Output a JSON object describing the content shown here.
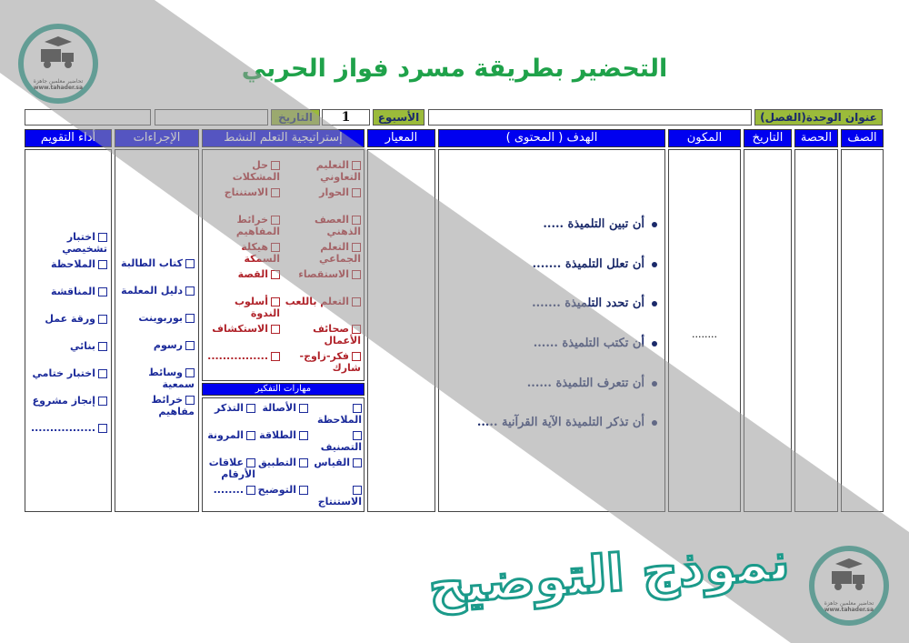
{
  "title": "التحضير بطريقة مسرد فواز الحربي",
  "logo": {
    "text_ar": "تحاضير معلمين جاهزة",
    "url_text": "www.tahader.sa"
  },
  "watermark": "نموذج التوضيح",
  "info_row": {
    "unit_label": "عنوان الوحدة(الفصل)",
    "unit_value": "",
    "week_label": "الأسبوع",
    "week_value": "1",
    "date_label": "التاريخ",
    "date_value": ""
  },
  "headers": {
    "grade": "الصف",
    "period": "الحصة",
    "date": "التاريخ",
    "component": "المكون",
    "objective": "الهدف ( المحتوى )",
    "standard": "المعيار",
    "strategy": "إستراتيجية التعلم النشط",
    "procedures": "الإجراءات",
    "assessment": "أداء التقويم",
    "thinking": "مهارات التفكير"
  },
  "component_value": "........",
  "objectives": [
    "أن تبين التلميذة .....",
    "أن تعلل التلميذة .......",
    "أن تحدد التلميذة .......",
    "أن تكتب التلميذة ......",
    "أن تتعرف التلميذة ......",
    "أن تذكر التلميذة الآية القرآنية ....."
  ],
  "strategies_right": [
    "التعليم التعاوني",
    "الحوار",
    "العصف الذهني",
    "التعلم الجماعي",
    "الاستقصاء",
    "التعلم باللعب",
    "صحائف الأعمال",
    "فكر-زاوج-شارك"
  ],
  "strategies_left": [
    "حل المشكلات",
    "الاستنتاج",
    "خرائط المفاهيم",
    "هيكلة السمكة",
    "القصة",
    "أسلوب الندوة",
    "الاستكشاف",
    "................"
  ],
  "thinking_skills": [
    [
      "الملاحظة",
      "الأصالة",
      "التذكر"
    ],
    [
      "التصنيف",
      "الطلاقة",
      "المرونة"
    ],
    [
      "القياس",
      "التطبيق",
      "علاقات الأرقام"
    ],
    [
      "الاستنتاج",
      "التوضيح",
      "........"
    ]
  ],
  "procedures": [
    "كتاب الطالبة",
    "دليل المعلمة",
    "بوربوينت",
    "رسوم",
    "وسائط سمعية",
    "خرائط مفاهيم"
  ],
  "assessment": [
    "اختبار تشخيصي",
    "الملاحظة",
    "المناقشة",
    "ورقة عمل",
    "بنائي",
    "اختبار ختامي",
    "إنجاز مشروع",
    "................."
  ],
  "colors": {
    "header_blue": "#0000f0",
    "label_green": "#9bbb3a",
    "title_green": "#1fa24a",
    "strategy_red": "#b0232a",
    "text_blue": "#1b2a9a",
    "logo_teal": "#1fa08f"
  }
}
